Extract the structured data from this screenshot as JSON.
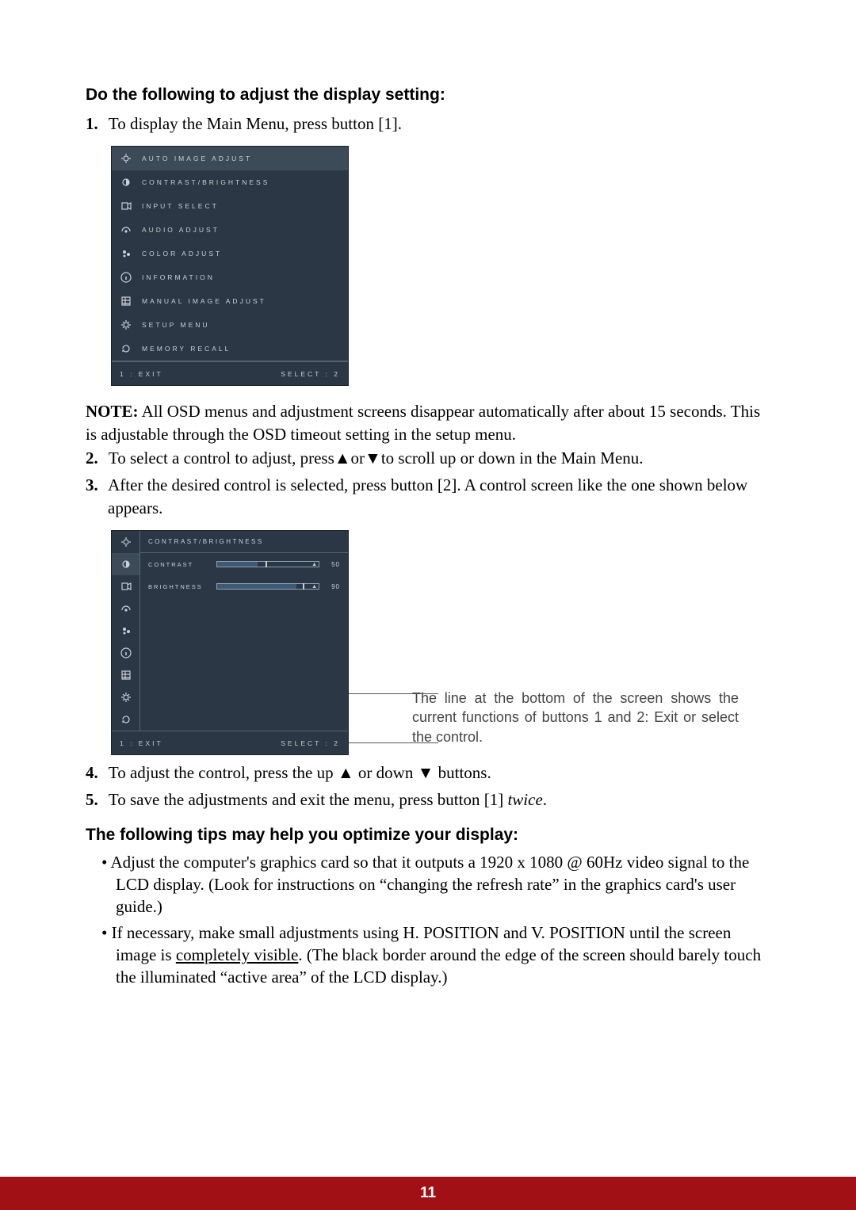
{
  "heading": "Do the following to adjust the display setting:",
  "step1_num": "1.",
  "step1_text": "To display the Main Menu, press button [1].",
  "osd1": {
    "items": [
      "AUTO IMAGE ADJUST",
      "CONTRAST/BRIGHTNESS",
      "INPUT SELECT",
      "AUDIO ADJUST",
      "COLOR ADJUST",
      "INFORMATION",
      "MANUAL IMAGE ADJUST",
      "SETUP MENU",
      "MEMORY RECALL"
    ],
    "footer_left": "1 : EXIT",
    "footer_right": "SELECT : 2",
    "selected_index": 0,
    "bg": "#2b3744",
    "fg": "#c8d0d8",
    "sel_bg": "#3d4a58"
  },
  "note_label": "NOTE:",
  "note_text": " All OSD menus and adjustment screens disappear automatically after about 15 seconds. This is adjustable through the OSD timeout setting in the setup menu.",
  "step2_num": "2.",
  "step2_text_a": "To select a control to adjust, press",
  "step2_up": "▲",
  "step2_or": "or",
  "step2_down": "▼",
  "step2_text_b": "to scroll up or down in the Main Menu.",
  "step3_num": "3.",
  "step3_text": "After the desired control is selected, press button [2]. A control screen like the one shown below appears.",
  "osd2": {
    "title": "CONTRAST/BRIGHTNESS",
    "rows": [
      {
        "label": "CONTRAST",
        "value": "50",
        "fill_pct": 40,
        "thumb_pct": 48
      },
      {
        "label": "BRIGHTNESS",
        "value": "90",
        "fill_pct": 78,
        "thumb_pct": 84
      }
    ],
    "footer_left": "1 : EXIT",
    "footer_right": "SELECT : 2",
    "bg": "#2b3744",
    "fg": "#c8d0d8"
  },
  "annotation": "The line at the bottom of the screen shows the current functions of buttons 1 and 2: Exit or select the control.",
  "step4_num": "4.",
  "step4_text_a": "To adjust the control, press the up ",
  "step4_up": "▲",
  "step4_mid": " or down ",
  "step4_down": "▼",
  "step4_text_b": " buttons.",
  "step5_num": "5.",
  "step5_text_a": "To save the adjustments and exit the menu, press button [1] ",
  "step5_twice": "twice",
  "step5_text_b": ".",
  "tips_heading": "The following tips may help you optimize your display:",
  "tip1": "Adjust the computer's graphics card so that it outputs a 1920 x 1080 @ 60Hz video signal to the LCD display. (Look for instructions on “changing the refresh rate” in the graphics card's user guide.)",
  "tip2_a": "If necessary, make small adjustments using H. POSITION and V. POSITION until the screen image is ",
  "tip2_u": "completely visible",
  "tip2_b": ". (The black border around the edge of the screen should barely touch the illuminated “active area” of the LCD display.)",
  "page_number": "11",
  "footer_bg": "#a01014"
}
